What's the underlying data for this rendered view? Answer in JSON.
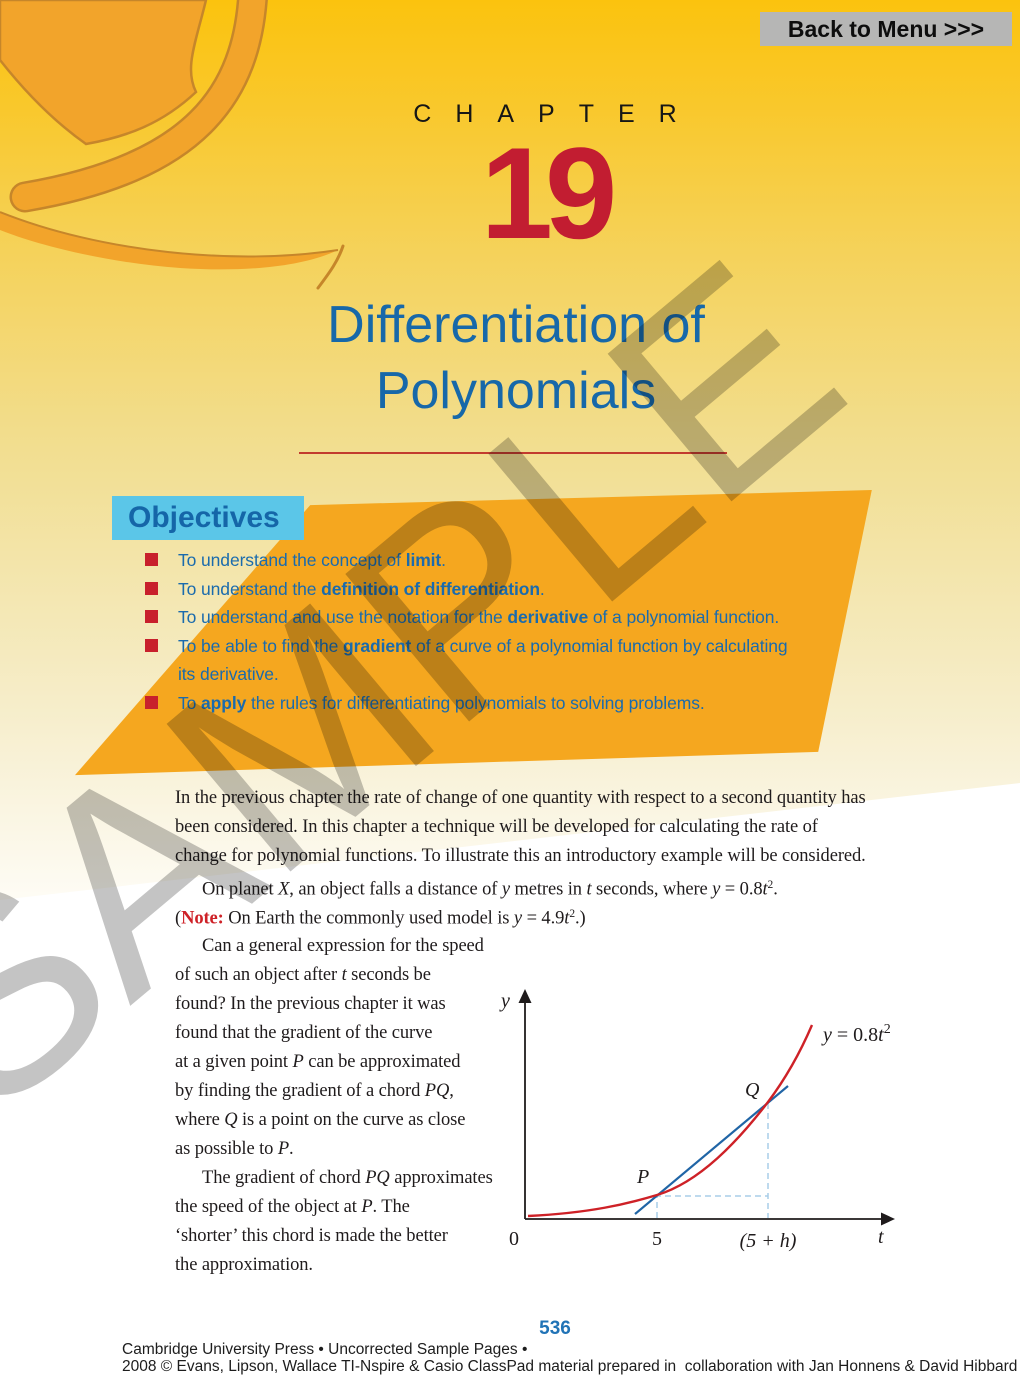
{
  "page": {
    "back_button": "Back to Menu >>>",
    "chapter_label": "CHAPTER",
    "chapter_number": "19",
    "title_line1": "Differentiation of",
    "title_line2": "Polynomials",
    "watermark": "SAMPLE",
    "page_number": "536",
    "footer_line1": "Cambridge University Press • Uncorrected Sample Pages •",
    "footer_line2": "2008 © Evans, Lipson, Wallace TI-Nspire & Casio ClassPad material prepared in  collaboration with Jan Honnens & David Hibbard"
  },
  "colors": {
    "header_yellow": "#FBC30E",
    "swirl_orange": "#F2A42B",
    "swirl_outline": "#C6862A",
    "objectives_panel_orange": "#F5A71F",
    "objectives_header_blue_bg": "#5BC6E8",
    "heading_blue": "#1768A9",
    "chapter_number_red": "#C21D31",
    "bullet_red": "#C8202C",
    "note_red": "#CE2127",
    "curve_red": "#CE2127",
    "chord_blue": "#2065A6",
    "dash_light_blue": "#A9CDE8",
    "button_gray": "#B6B6B5"
  },
  "objectives": {
    "heading": "Objectives",
    "items": [
      {
        "bullet": true,
        "segments": [
          {
            "t": "To understand the concept of ",
            "s": ""
          },
          {
            "t": "limit",
            "s": "b"
          },
          {
            "t": ".",
            "s": ""
          }
        ]
      },
      {
        "bullet": true,
        "segments": [
          {
            "t": "To understand the ",
            "s": ""
          },
          {
            "t": "definition of differentiation",
            "s": "b"
          },
          {
            "t": ".",
            "s": ""
          }
        ]
      },
      {
        "bullet": true,
        "segments": [
          {
            "t": "To understand and use the notation for the ",
            "s": ""
          },
          {
            "t": "derivative",
            "s": "b"
          },
          {
            "t": " of a polynomial function.",
            "s": ""
          }
        ]
      },
      {
        "bullet": true,
        "segments": [
          {
            "t": "To be able to find the ",
            "s": ""
          },
          {
            "t": "gradient",
            "s": "b"
          },
          {
            "t": " of a curve of a polynomial function by calculating",
            "s": ""
          }
        ]
      },
      {
        "bullet": false,
        "segments": [
          {
            "t": "its derivative.",
            "s": ""
          }
        ]
      },
      {
        "bullet": true,
        "segments": [
          {
            "t": "To ",
            "s": ""
          },
          {
            "t": "apply",
            "s": "b"
          },
          {
            "t": " the rules for differentiating polynomials to solving problems.",
            "s": ""
          }
        ]
      }
    ]
  },
  "intro": {
    "lines": [
      {
        "indent": false,
        "segments": [
          {
            "t": "In the previous chapter the rate of change of one quantity with respect to a second quantity has",
            "s": ""
          }
        ]
      },
      {
        "indent": false,
        "segments": [
          {
            "t": "been considered. In this chapter a technique will be developed for calculating the rate of",
            "s": ""
          }
        ]
      },
      {
        "indent": false,
        "segments": [
          {
            "t": "change for polynomial functions. To illustrate this an introductory example will be considered.",
            "s": ""
          }
        ]
      },
      {
        "indent": true,
        "segments": [
          {
            "t": "On planet ",
            "s": ""
          },
          {
            "t": "X",
            "s": "i"
          },
          {
            "t": ", an object falls a distance of ",
            "s": ""
          },
          {
            "t": "y",
            "s": "i"
          },
          {
            "t": " metres in ",
            "s": ""
          },
          {
            "t": "t",
            "s": "i"
          },
          {
            "t": " seconds, where ",
            "s": ""
          },
          {
            "t": "y",
            "s": "i"
          },
          {
            "t": " = 0.8",
            "s": ""
          },
          {
            "t": "t",
            "s": "i"
          },
          {
            "t": "2",
            "s": "sup"
          },
          {
            "t": ".",
            "s": ""
          }
        ]
      },
      {
        "indent": false,
        "segments": [
          {
            "t": "(",
            "s": ""
          },
          {
            "t": "Note:",
            "s": "note"
          },
          {
            "t": " On Earth the commonly used model is ",
            "s": ""
          },
          {
            "t": "y",
            "s": "i"
          },
          {
            "t": " = 4.9",
            "s": ""
          },
          {
            "t": "t",
            "s": "i"
          },
          {
            "t": "2",
            "s": "sup"
          },
          {
            "t": ".)",
            "s": ""
          }
        ]
      }
    ]
  },
  "left_column": {
    "lines": [
      {
        "indent": true,
        "segments": [
          {
            "t": "Can a general expression for the speed",
            "s": ""
          }
        ]
      },
      {
        "indent": false,
        "segments": [
          {
            "t": "of such an object after ",
            "s": ""
          },
          {
            "t": "t",
            "s": "i"
          },
          {
            "t": " seconds be",
            "s": ""
          }
        ]
      },
      {
        "indent": false,
        "segments": [
          {
            "t": "found? In the previous chapter it was",
            "s": ""
          }
        ]
      },
      {
        "indent": false,
        "segments": [
          {
            "t": "found that the gradient of the curve",
            "s": ""
          }
        ]
      },
      {
        "indent": false,
        "segments": [
          {
            "t": "at a given point ",
            "s": ""
          },
          {
            "t": "P",
            "s": "i"
          },
          {
            "t": " can be approximated",
            "s": ""
          }
        ]
      },
      {
        "indent": false,
        "segments": [
          {
            "t": "by finding the gradient of a chord ",
            "s": ""
          },
          {
            "t": "PQ",
            "s": "i"
          },
          {
            "t": ",",
            "s": ""
          }
        ]
      },
      {
        "indent": false,
        "segments": [
          {
            "t": "where ",
            "s": ""
          },
          {
            "t": "Q",
            "s": "i"
          },
          {
            "t": " is a point on the curve as close",
            "s": ""
          }
        ]
      },
      {
        "indent": false,
        "segments": [
          {
            "t": "as possible to ",
            "s": ""
          },
          {
            "t": "P",
            "s": "i"
          },
          {
            "t": ".",
            "s": ""
          }
        ]
      },
      {
        "indent": true,
        "segments": [
          {
            "t": "The gradient of chord ",
            "s": ""
          },
          {
            "t": "PQ",
            "s": "i"
          },
          {
            "t": " approximates",
            "s": ""
          }
        ]
      },
      {
        "indent": false,
        "segments": [
          {
            "t": "the speed of the object at ",
            "s": ""
          },
          {
            "t": "P",
            "s": "i"
          },
          {
            "t": ". The",
            "s": ""
          }
        ]
      },
      {
        "indent": false,
        "segments": [
          {
            "t": "‘shorter’ this chord is made the better",
            "s": ""
          }
        ]
      },
      {
        "indent": false,
        "segments": [
          {
            "t": "the approximation.",
            "s": ""
          }
        ]
      }
    ]
  },
  "graph": {
    "function": "y = 0.8t^2",
    "curve_label_y": "y",
    "curve_label_eq": " = 0.8",
    "curve_label_t": "t",
    "curve_label_exp": "2",
    "y_axis_label": "y",
    "x_axis_label": "t",
    "origin_label": "0",
    "tick_p": "5",
    "tick_q": "(5 + h)",
    "point_p_label": "P",
    "point_q_label": "Q",
    "point_p_t": 5,
    "point_q_t": "5 + h"
  }
}
